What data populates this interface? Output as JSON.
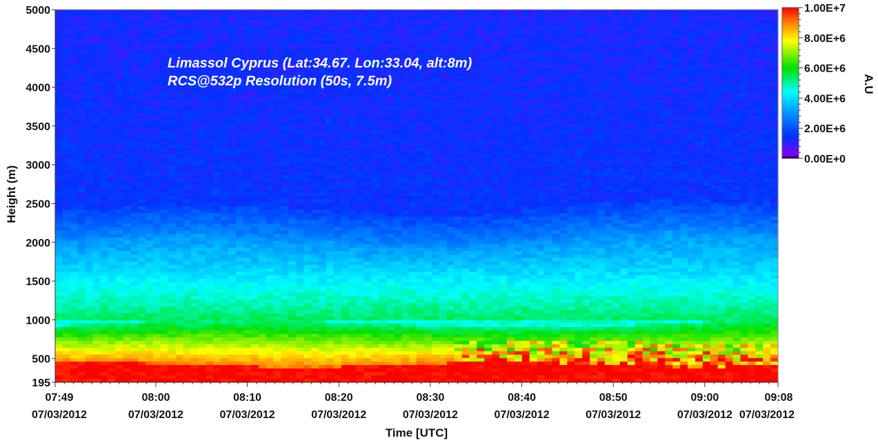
{
  "chart_data": {
    "type": "heatmap",
    "title": "",
    "annotations": [
      "Limassol Cyprus (Lat:34.67. Lon:33.04, alt:8m)",
      "RCS@532p Resolution (50s, 7.5m)"
    ],
    "xlabel": "Time [UTC]",
    "ylabel": "Height (m)",
    "ylim": [
      195,
      5000
    ],
    "xlim": [
      "07:49",
      "09:08"
    ],
    "x_ticks": [
      {
        "time": "07:49",
        "date": "07/03/2012"
      },
      {
        "time": "08:00",
        "date": "07/03/2012"
      },
      {
        "time": "08:10",
        "date": "07/03/2012"
      },
      {
        "time": "08:20",
        "date": "07/03/2012"
      },
      {
        "time": "08:30",
        "date": "07/03/2012"
      },
      {
        "time": "08:40",
        "date": "07/03/2012"
      },
      {
        "time": "08:50",
        "date": "07/03/2012"
      },
      {
        "time": "09:00",
        "date": "07/03/2012"
      },
      {
        "time": "09:08",
        "date": "07/03/2012"
      }
    ],
    "y_ticks": [
      "5000",
      "4500",
      "4000",
      "3500",
      "3000",
      "2500",
      "2000",
      "1500",
      "1000",
      "500",
      "195"
    ],
    "y_tick_values": [
      5000,
      4500,
      4000,
      3500,
      3000,
      2500,
      2000,
      1500,
      1000,
      500,
      195
    ],
    "colorbar": {
      "label": "A.U",
      "min": 0,
      "max": 10000000,
      "ticks": [
        "1.00E+7",
        "8.00E+6",
        "6.00E+6",
        "4.00E+6",
        "2.00E+6",
        "0.00E+0"
      ],
      "tick_values": [
        10000000,
        8000000,
        6000000,
        4000000,
        2000000,
        0
      ],
      "colors": [
        "#000000",
        "#8000ff",
        "#0033ff",
        "#00a0ff",
        "#00ffff",
        "#00e000",
        "#ffff00",
        "#ff8000",
        "#ff0000"
      ]
    },
    "layers": {
      "near_ground_red_top_m": 420,
      "aerosol_layer_top_m": 1000,
      "boundary_layer_top_m": 2000,
      "free_troposphere_value": 1500000
    }
  }
}
